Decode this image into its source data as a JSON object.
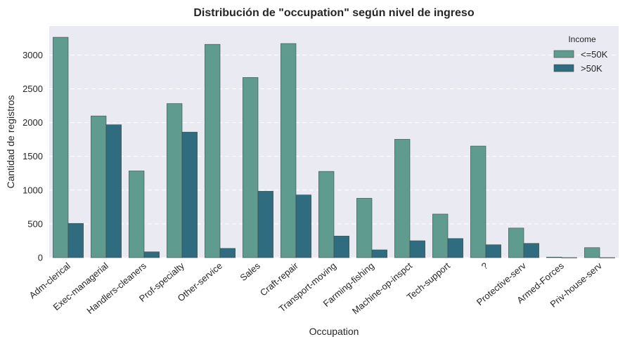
{
  "chart_data": {
    "type": "bar",
    "title": "Distribución de \"occupation\" según nivel de ingreso",
    "xlabel": "Occupation",
    "ylabel": "Cantidad de registros",
    "ylim": [
      0,
      3430
    ],
    "yticks": [
      0,
      500,
      1000,
      1500,
      2000,
      2500,
      3000
    ],
    "grid": true,
    "legend": {
      "title": "Income",
      "placement": "top-right"
    },
    "categories": [
      "Adm-clerical",
      "Exec-managerial",
      "Handlers-cleaners",
      "Prof-specialty",
      "Other-service",
      "Sales",
      "Craft-repair",
      "Transport-moving",
      "Farming-fishing",
      "Machine-op-inspct",
      "Tech-support",
      "?",
      "Protective-serv",
      "Armed-Forces",
      "Priv-house-serv"
    ],
    "series": [
      {
        "name": "<=50K",
        "color": "#5f9b8f",
        "values": [
          3263,
          2098,
          1284,
          2281,
          3158,
          2667,
          3170,
          1277,
          879,
          1752,
          645,
          1652,
          438,
          8,
          148
        ]
      },
      {
        "name": ">50K",
        "color": "#2f6c80",
        "values": [
          507,
          1968,
          86,
          1859,
          137,
          983,
          929,
          320,
          115,
          250,
          283,
          191,
          211,
          1,
          1
        ]
      }
    ]
  }
}
